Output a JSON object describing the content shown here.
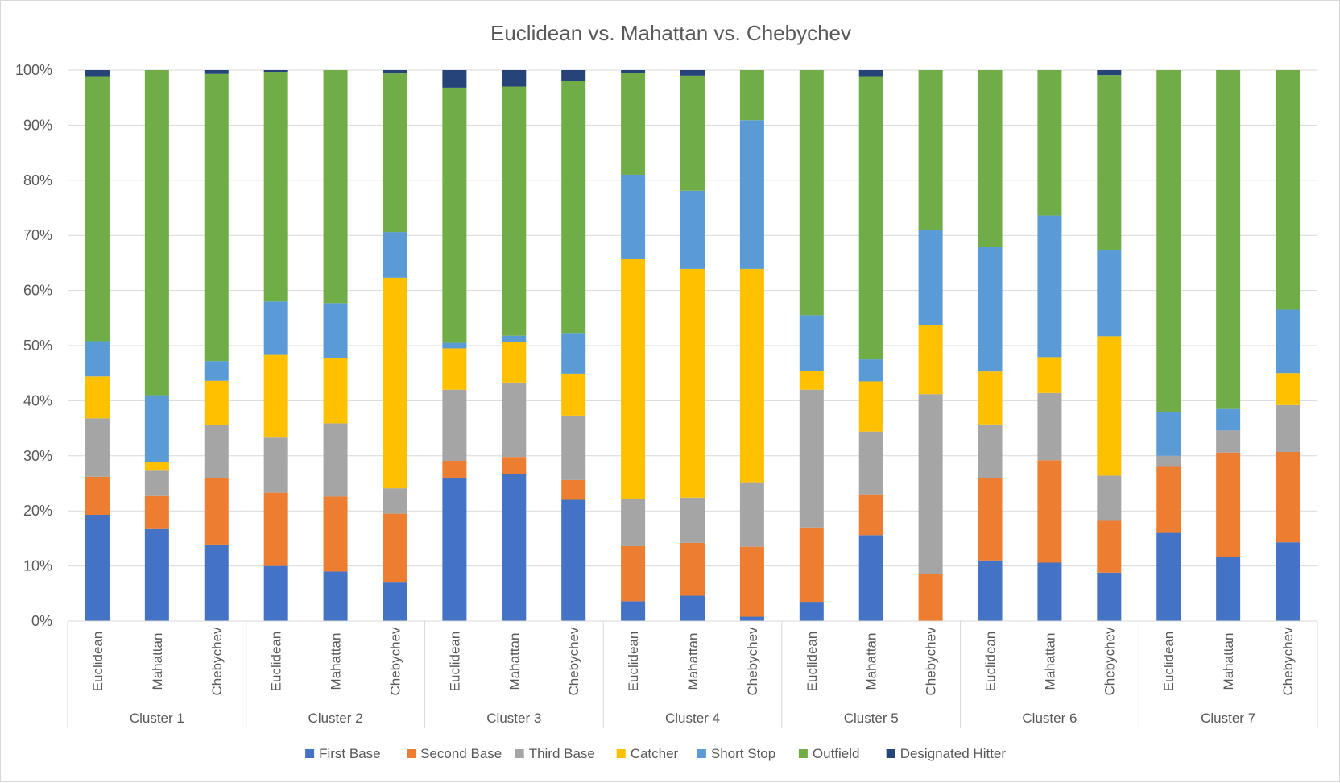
{
  "chart_data": {
    "type": "bar",
    "stacked": "percent",
    "title": "Euclidean vs. Mahattan vs. Chebychev",
    "ylim": [
      0,
      100
    ],
    "yticks": [
      "0%",
      "10%",
      "20%",
      "30%",
      "40%",
      "50%",
      "60%",
      "70%",
      "80%",
      "90%",
      "100%"
    ],
    "grid": true,
    "legend_position": "bottom",
    "groups": [
      "Cluster 1",
      "Cluster 2",
      "Cluster 3",
      "Cluster 4",
      "Cluster 5",
      "Cluster 6",
      "Cluster 7"
    ],
    "methods": [
      "Euclidean",
      "Mahattan",
      "Chebychev"
    ],
    "series": [
      {
        "name": "First Base",
        "color": "#4472C4",
        "values": [
          19.3,
          16.7,
          13.9,
          10.0,
          9.0,
          7.0,
          25.9,
          26.7,
          22.0,
          3.6,
          4.6,
          0.8,
          3.5,
          15.6,
          0.0,
          11.0,
          10.6,
          8.8,
          16.0,
          11.6,
          14.3
        ]
      },
      {
        "name": "Second Base",
        "color": "#ED7D31",
        "values": [
          6.9,
          6.0,
          12.0,
          13.3,
          13.6,
          12.5,
          3.2,
          3.1,
          3.6,
          10.0,
          9.6,
          12.7,
          13.5,
          7.4,
          8.6,
          15.0,
          18.6,
          9.4,
          12.0,
          19.0,
          16.4
        ]
      },
      {
        "name": "Third Base",
        "color": "#A5A5A5",
        "values": [
          10.6,
          4.6,
          9.7,
          10.0,
          13.3,
          4.6,
          12.9,
          13.5,
          11.7,
          8.6,
          8.2,
          11.7,
          25.0,
          11.4,
          32.6,
          9.7,
          12.2,
          8.2,
          2.0,
          4.0,
          8.5
        ]
      },
      {
        "name": "Catcher",
        "color": "#FFC000",
        "values": [
          7.6,
          1.5,
          8.0,
          15.0,
          11.9,
          38.2,
          7.5,
          7.3,
          7.6,
          43.5,
          41.5,
          38.7,
          3.4,
          9.1,
          12.6,
          9.6,
          6.5,
          25.3,
          0.0,
          0.0,
          5.8
        ]
      },
      {
        "name": "Short Stop",
        "color": "#5B9BD5",
        "values": [
          6.4,
          12.2,
          3.6,
          9.7,
          9.9,
          8.3,
          1.0,
          1.2,
          7.4,
          15.3,
          14.2,
          27.0,
          10.1,
          4.0,
          17.2,
          22.6,
          25.7,
          15.7,
          8.0,
          3.9,
          11.5
        ]
      },
      {
        "name": "Outfield",
        "color": "#70AD47",
        "values": [
          48.1,
          59.0,
          52.1,
          41.7,
          42.3,
          28.8,
          46.3,
          45.2,
          45.7,
          18.5,
          20.9,
          9.1,
          44.5,
          51.4,
          29.0,
          32.1,
          26.4,
          31.7,
          62.0,
          61.5,
          43.5
        ]
      },
      {
        "name": "Designated Hitter",
        "color": "#264478",
        "values": [
          1.1,
          0.0,
          0.7,
          0.3,
          0.0,
          0.6,
          3.2,
          3.0,
          2.0,
          0.5,
          1.0,
          0.0,
          0.0,
          1.1,
          0.0,
          0.0,
          0.0,
          0.9,
          0.0,
          0.0,
          0.0
        ]
      }
    ]
  }
}
